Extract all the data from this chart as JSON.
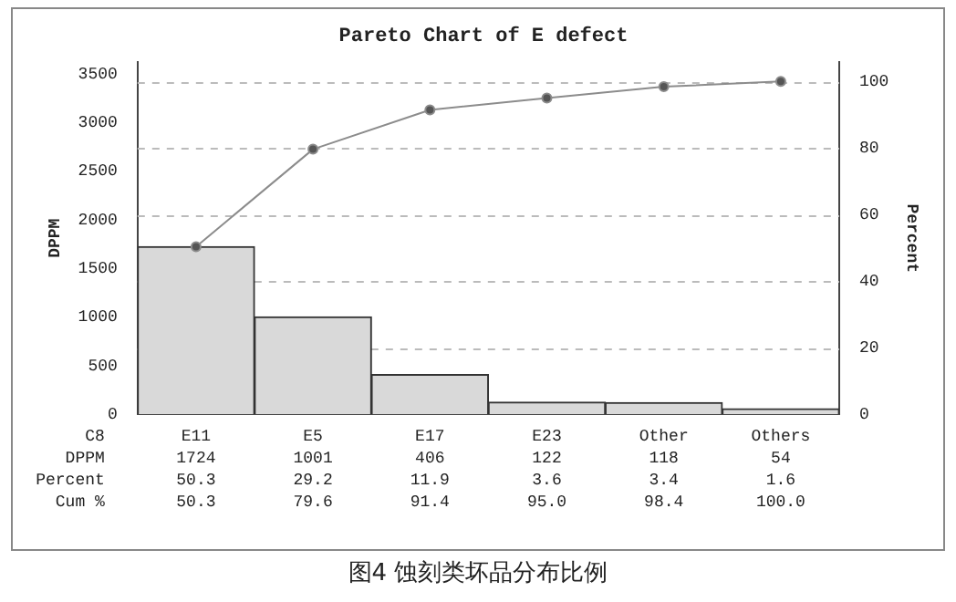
{
  "chart_data": {
    "type": "bar",
    "title": "Pareto Chart of E defect",
    "xlabel": "C8",
    "ylabel": "DPPM",
    "y2label": "Percent",
    "categories": [
      "E11",
      "E5",
      "E17",
      "E23",
      "Other",
      "Others"
    ],
    "series": [
      {
        "name": "DPPM",
        "color": "#d9d9d9",
        "values": [
          1724,
          1001,
          406,
          122,
          118,
          54
        ],
        "value_labels": [
          "1724",
          "1001",
          "406",
          "122",
          "118",
          "54"
        ]
      },
      {
        "type": "line",
        "axis": "y2",
        "color": "#8c8c8c",
        "values": [
          50.3,
          79.6,
          91.4,
          95.0,
          98.4,
          100.0
        ]
      }
    ],
    "ylim": [
      0,
      3620
    ],
    "yticks": [
      0,
      500,
      1000,
      1500,
      2000,
      2500,
      3000,
      3500
    ],
    "y2lim": [
      0,
      105.7
    ],
    "y2ticks": [
      0,
      20,
      40,
      60,
      80,
      100
    ],
    "grid": "y",
    "legend": false,
    "marker": "circle",
    "line_style": "solid",
    "annotations": [
      "Percent",
      "50.3",
      "29.2",
      "11.9",
      "3.6",
      "3.4",
      "1.6",
      "Cum %",
      "50.3",
      "79.6",
      "91.4",
      "95.0",
      "98.4",
      "100.0",
      "图4 蚀刻类坏品分布比例"
    ]
  }
}
